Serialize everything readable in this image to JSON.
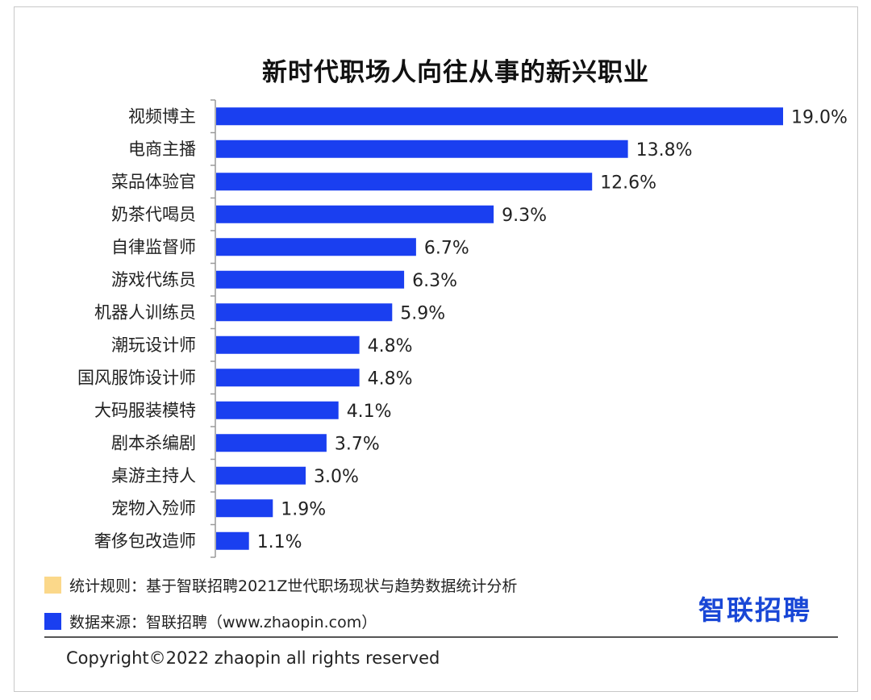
{
  "chart_data": {
    "type": "bar",
    "orientation": "horizontal",
    "title": "新时代职场人向往从事的新兴职业",
    "categories": [
      "视频博主",
      "电商主播",
      "菜品体验官",
      "奶茶代喝员",
      "自律监督师",
      "游戏代练员",
      "机器人训练员",
      "潮玩设计师",
      "国风服饰设计师",
      "大码服装模特",
      "剧本杀编剧",
      "桌游主持人",
      "宠物入殓师",
      "奢侈包改造师"
    ],
    "values": [
      19.0,
      13.8,
      12.6,
      9.3,
      6.7,
      6.3,
      5.9,
      4.8,
      4.8,
      4.1,
      3.7,
      3.0,
      1.9,
      1.1
    ],
    "value_labels": [
      "19.0%",
      "13.8%",
      "12.6%",
      "9.3%",
      "6.7%",
      "6.3%",
      "5.9%",
      "4.8%",
      "4.8%",
      "4.1%",
      "3.7%",
      "3.0%",
      "1.9%",
      "1.1%"
    ],
    "xlim": [
      0,
      19.0
    ],
    "unit": "%",
    "bar_color": "#1a3ff0"
  },
  "legend": {
    "rule_label": "统计规则：基于智联招聘2021Z世代职场现状与趋势数据统计分析",
    "rule_color": "#fbd88a",
    "source_label": "数据来源：智联招聘（www.zhaopin.com）",
    "source_color": "#1a3ff0"
  },
  "brand": "智联招聘",
  "copyright": "Copyright©2022 zhaopin all rights reserved"
}
